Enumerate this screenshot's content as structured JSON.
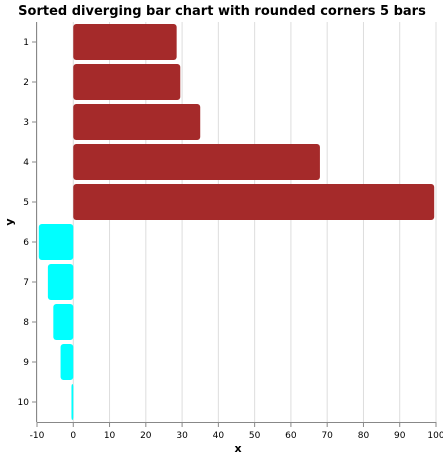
{
  "chart_data": {
    "type": "bar",
    "orientation": "horizontal",
    "title": "Sorted diverging bar chart with rounded corners 5 bars",
    "xlabel": "x",
    "ylabel": "y",
    "xlim": [
      -10,
      100
    ],
    "x_ticks": [
      -10,
      0,
      10,
      20,
      30,
      40,
      50,
      60,
      70,
      80,
      90,
      100
    ],
    "grid": true,
    "categories": [
      "1",
      "2",
      "3",
      "4",
      "5",
      "6",
      "7",
      "8",
      "9",
      "10"
    ],
    "values": [
      28.5,
      29.5,
      35,
      68,
      99.5,
      -9.5,
      -7,
      -5.5,
      -3.5,
      -0.5
    ],
    "colors": {
      "positive": "#a52a2a",
      "negative": "#00ffff"
    }
  }
}
